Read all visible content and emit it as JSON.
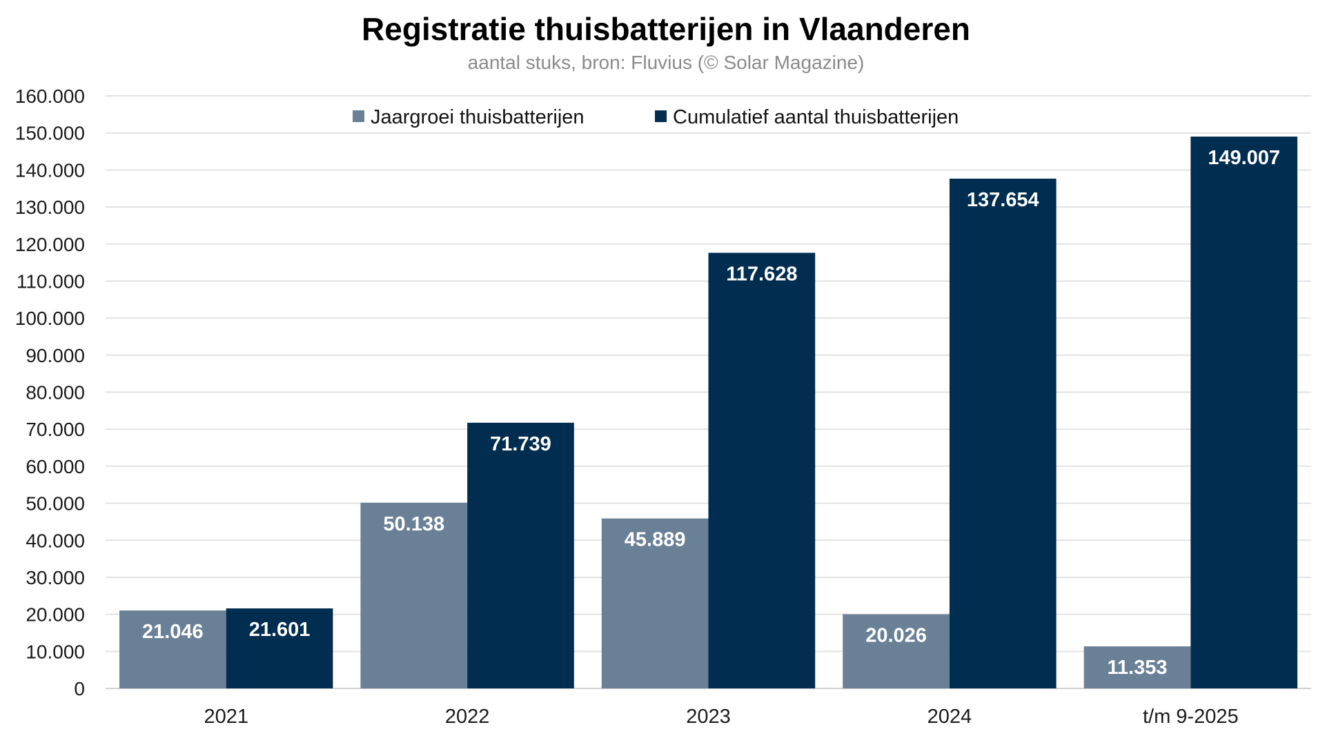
{
  "chart_data": {
    "type": "bar",
    "title": "Registratie thuisbatterijen in Vlaanderen",
    "subtitle": "aantal stuks, bron: Fluvius (© Solar Magazine)",
    "xlabel": "",
    "ylabel": "",
    "categories": [
      "2021",
      "2022",
      "2023",
      "2024",
      "t/m 9-2025"
    ],
    "series": [
      {
        "name": "Jaargroei thuisbatterijen",
        "color": "#6A8097",
        "values": [
          21046,
          50138,
          45889,
          20026,
          11353
        ],
        "labels": [
          "21.046",
          "50.138",
          "45.889",
          "20.026",
          "11.353"
        ]
      },
      {
        "name": "Cumulatief aantal thuisbatterijen",
        "color": "#002D50",
        "values": [
          21601,
          71739,
          117628,
          137654,
          149007
        ],
        "labels": [
          "21.601",
          "71.739",
          "117.628",
          "137.654",
          "149.007"
        ]
      }
    ],
    "ylim": [
      0,
      160000
    ],
    "yticks": [
      0,
      10000,
      20000,
      30000,
      40000,
      50000,
      60000,
      70000,
      80000,
      90000,
      100000,
      110000,
      120000,
      130000,
      140000,
      150000,
      160000
    ],
    "ytick_labels": [
      "0",
      "10.000",
      "20.000",
      "30.000",
      "40.000",
      "50.000",
      "60.000",
      "70.000",
      "80.000",
      "90.000",
      "100.000",
      "110.000",
      "120.000",
      "130.000",
      "140.000",
      "150.000",
      "160.000"
    ],
    "grid": true,
    "legend_position": "top-center",
    "data_labels": "inside-end"
  }
}
